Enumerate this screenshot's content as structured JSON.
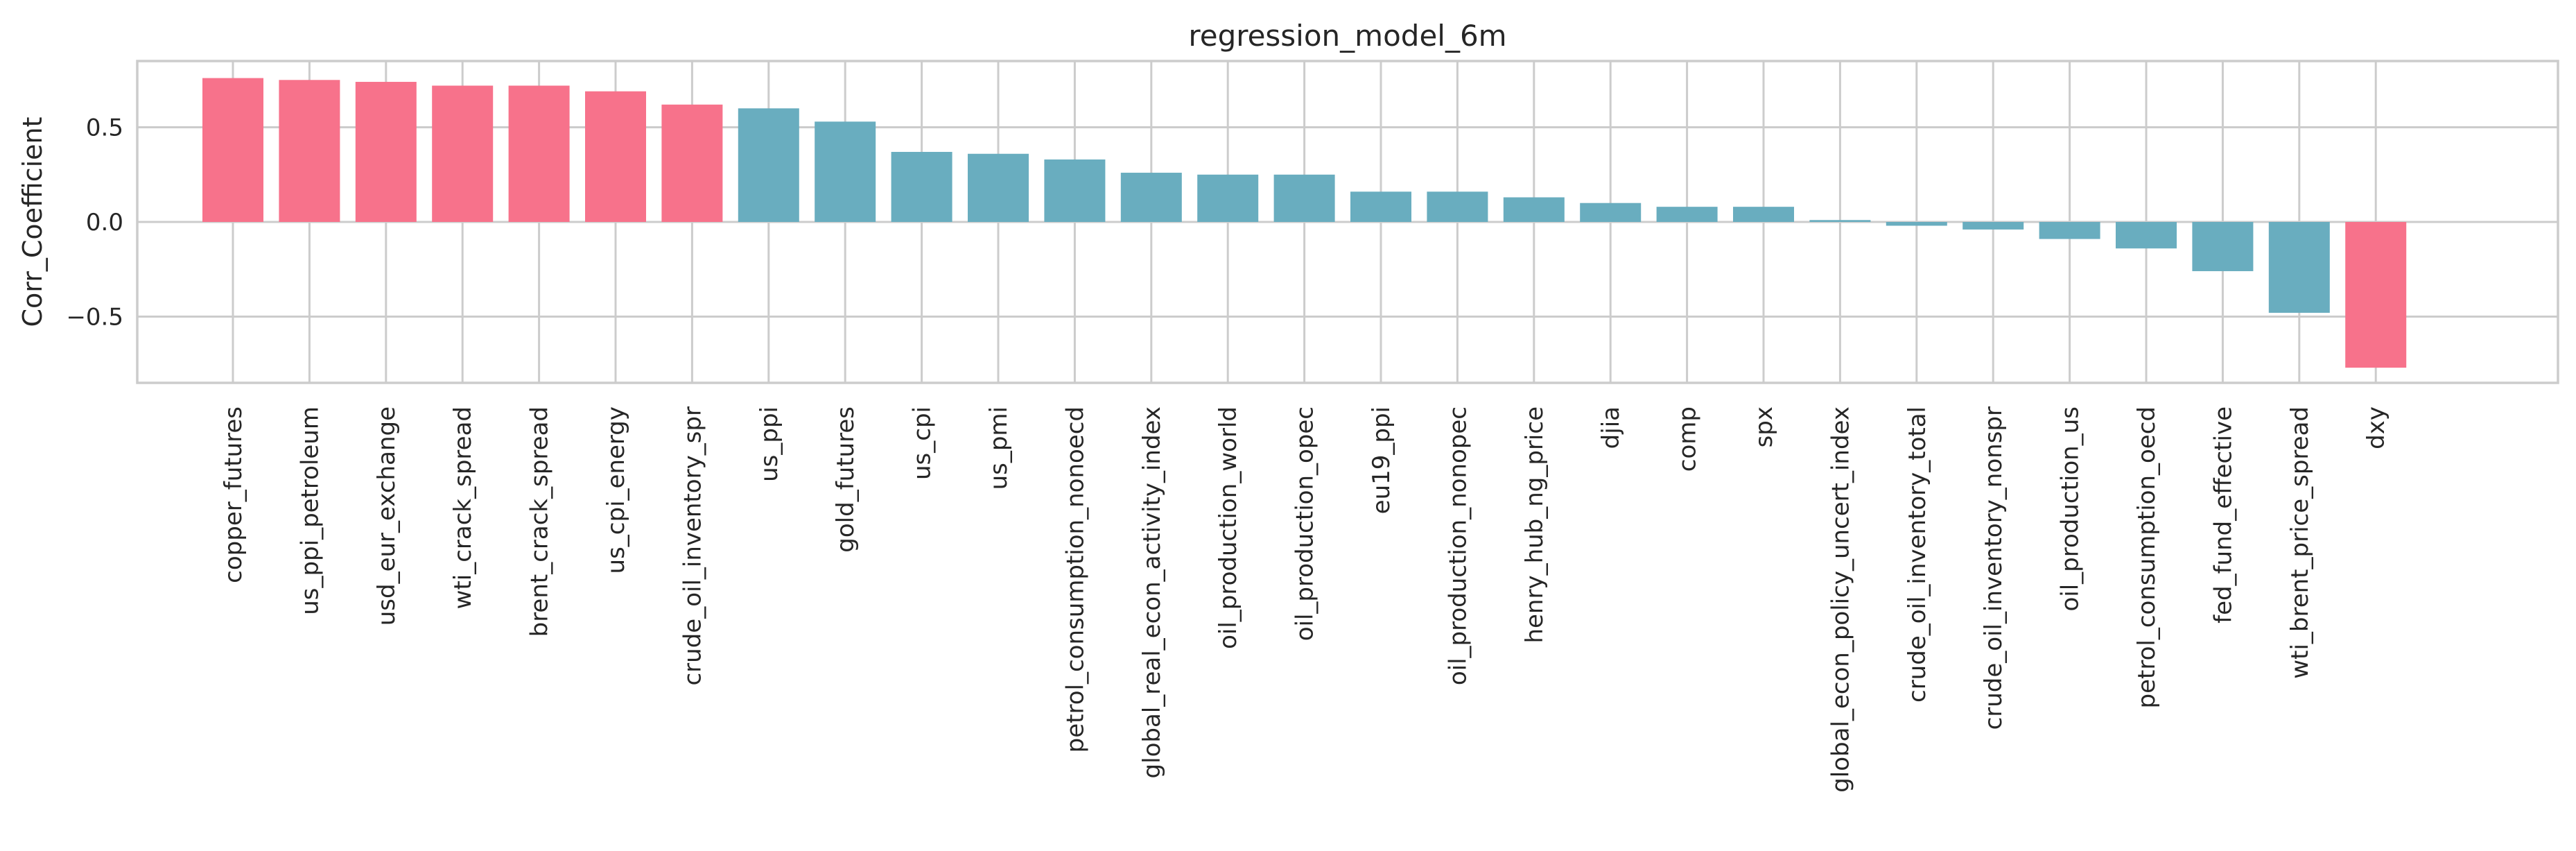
{
  "chart_data": {
    "type": "bar",
    "title": "regression_model_6m",
    "xlabel": "",
    "ylabel": "Corr_Coefficient",
    "ylim": [
      -0.85,
      0.85
    ],
    "yticks": [
      -0.5,
      0.0,
      0.5
    ],
    "ytick_labels": [
      "−0.5",
      "0.0",
      "0.5"
    ],
    "grid": true,
    "categories": [
      "copper_futures",
      "us_ppi_petroleum",
      "usd_eur_exchange",
      "wti_crack_spread",
      "brent_crack_spread",
      "us_cpi_energy",
      "crude_oil_inventory_spr",
      "us_ppi",
      "gold_futures",
      "us_cpi",
      "us_pmi",
      "petrol_consumption_nonoecd",
      "global_real_econ_activity_index",
      "oil_production_world",
      "oil_production_opec",
      "eu19_ppi",
      "oil_production_nonopec",
      "henry_hub_ng_price",
      "djia",
      "comp",
      "spx",
      "global_econ_policy_uncert_index",
      "crude_oil_inventory_total",
      "crude_oil_inventory_nonspr",
      "oil_production_us",
      "petrol_consumption_oecd",
      "fed_fund_effective",
      "wti_brent_price_spread",
      "dxy"
    ],
    "values": [
      0.76,
      0.75,
      0.74,
      0.72,
      0.72,
      0.69,
      0.62,
      0.6,
      0.53,
      0.37,
      0.36,
      0.33,
      0.26,
      0.25,
      0.25,
      0.16,
      0.16,
      0.13,
      0.1,
      0.08,
      0.08,
      0.01,
      -0.02,
      -0.04,
      -0.09,
      -0.14,
      -0.26,
      -0.48,
      -0.77
    ],
    "highlighted": [
      true,
      true,
      true,
      true,
      true,
      true,
      true,
      false,
      false,
      false,
      false,
      false,
      false,
      false,
      false,
      false,
      false,
      false,
      false,
      false,
      false,
      false,
      false,
      false,
      false,
      false,
      false,
      false,
      true
    ],
    "colors": {
      "highlight": "#f7728b",
      "normal": "#69adbf",
      "grid": "#cccccc",
      "text": "#262626"
    }
  }
}
